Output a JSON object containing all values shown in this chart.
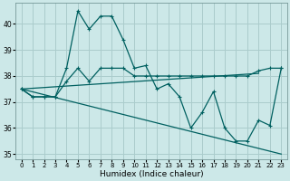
{
  "xlabel": "Humidex (Indice chaleur)",
  "bg_color": "#cce8e8",
  "grid_color": "#aacccc",
  "line_color": "#006060",
  "xlim": [
    -0.5,
    23.5
  ],
  "ylim": [
    34.8,
    40.8
  ],
  "yticks": [
    35,
    36,
    37,
    38,
    39,
    40
  ],
  "xticks": [
    0,
    1,
    2,
    3,
    4,
    5,
    6,
    7,
    8,
    9,
    10,
    11,
    12,
    13,
    14,
    15,
    16,
    17,
    18,
    19,
    20,
    21,
    22,
    23
  ],
  "series1": [
    37.5,
    37.2,
    37.2,
    37.2,
    38.3,
    40.5,
    39.8,
    40.3,
    40.3,
    39.4,
    38.3,
    38.4,
    37.5,
    37.7,
    37.2,
    36.0,
    36.6,
    37.4,
    36.0,
    35.5,
    35.5,
    36.3,
    36.1,
    38.3
  ],
  "series2": [
    37.5,
    37.2,
    37.2,
    37.2,
    37.8,
    38.3,
    37.8,
    38.3,
    38.3,
    38.3,
    38.0,
    38.0,
    38.0,
    38.0,
    38.0,
    38.0,
    38.0,
    38.0,
    38.0,
    38.0,
    38.0,
    38.2,
    38.3,
    38.3
  ],
  "series3_x": [
    0,
    23
  ],
  "series3_y": [
    37.5,
    35.0
  ],
  "series4_x": [
    0,
    21
  ],
  "series4_y": [
    37.5,
    38.1
  ],
  "xlabel_fontsize": 6.5,
  "tick_fontsize": 5.5
}
